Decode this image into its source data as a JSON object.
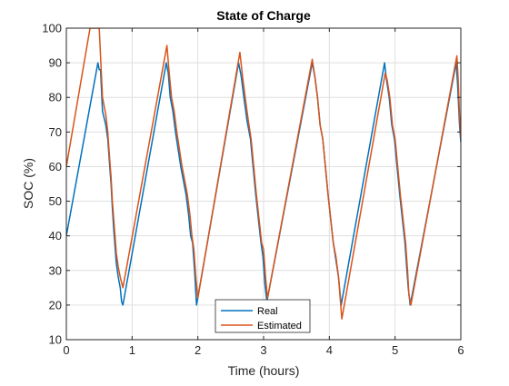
{
  "chart_data": {
    "type": "line",
    "title": "State of Charge",
    "xlabel": "Time (hours)",
    "ylabel": "SOC (%)",
    "xlim": [
      0,
      6
    ],
    "ylim": [
      10,
      100
    ],
    "xticks": [
      0,
      1,
      2,
      3,
      4,
      5,
      6
    ],
    "yticks": [
      10,
      20,
      30,
      40,
      50,
      60,
      70,
      80,
      90,
      100
    ],
    "grid": true,
    "legend_position": "bottom-center",
    "series": [
      {
        "name": "Real",
        "color": "#0072BD",
        "points": [
          [
            0.0,
            40
          ],
          [
            0.48,
            90
          ],
          [
            0.5,
            88
          ],
          [
            0.52,
            88
          ],
          [
            0.55,
            76
          ],
          [
            0.6,
            72
          ],
          [
            0.63,
            68
          ],
          [
            0.66,
            60
          ],
          [
            0.68,
            55
          ],
          [
            0.7,
            48
          ],
          [
            0.72,
            42
          ],
          [
            0.74,
            37
          ],
          [
            0.76,
            32
          ],
          [
            0.79,
            28
          ],
          [
            0.82,
            25
          ],
          [
            0.84,
            21
          ],
          [
            0.86,
            20
          ],
          [
            1.52,
            90
          ],
          [
            1.55,
            87
          ],
          [
            1.58,
            80
          ],
          [
            1.62,
            76
          ],
          [
            1.66,
            70
          ],
          [
            1.7,
            65
          ],
          [
            1.74,
            60
          ],
          [
            1.78,
            56
          ],
          [
            1.82,
            52
          ],
          [
            1.86,
            46
          ],
          [
            1.89,
            40
          ],
          [
            1.92,
            38
          ],
          [
            1.95,
            30
          ],
          [
            1.98,
            20
          ],
          [
            2.62,
            90
          ],
          [
            2.66,
            86
          ],
          [
            2.7,
            80
          ],
          [
            2.75,
            73
          ],
          [
            2.8,
            68
          ],
          [
            2.84,
            60
          ],
          [
            2.88,
            52
          ],
          [
            2.92,
            45
          ],
          [
            2.96,
            38
          ],
          [
            2.99,
            34
          ],
          [
            3.02,
            26
          ],
          [
            3.05,
            21
          ],
          [
            3.74,
            90
          ],
          [
            3.78,
            86
          ],
          [
            3.82,
            80
          ],
          [
            3.86,
            72
          ],
          [
            3.9,
            68
          ],
          [
            3.94,
            60
          ],
          [
            3.98,
            52
          ],
          [
            4.02,
            45
          ],
          [
            4.06,
            38
          ],
          [
            4.1,
            33
          ],
          [
            4.14,
            28
          ],
          [
            4.18,
            20
          ],
          [
            4.84,
            90
          ],
          [
            4.87,
            85
          ],
          [
            4.91,
            80
          ],
          [
            4.95,
            72
          ],
          [
            4.99,
            68
          ],
          [
            5.03,
            60
          ],
          [
            5.07,
            52
          ],
          [
            5.11,
            45
          ],
          [
            5.15,
            38
          ],
          [
            5.18,
            30
          ],
          [
            5.2,
            25
          ],
          [
            5.23,
            20
          ],
          [
            5.93,
            90
          ],
          [
            5.95,
            84
          ],
          [
            5.98,
            72
          ],
          [
            6.0,
            67
          ]
        ]
      },
      {
        "name": "Estimated",
        "color": "#D95319",
        "points": [
          [
            0.0,
            60
          ],
          [
            0.36,
            100
          ],
          [
            0.5,
            100
          ],
          [
            0.52,
            92
          ],
          [
            0.55,
            80
          ],
          [
            0.6,
            75
          ],
          [
            0.63,
            70
          ],
          [
            0.66,
            62
          ],
          [
            0.68,
            57
          ],
          [
            0.7,
            50
          ],
          [
            0.72,
            45
          ],
          [
            0.74,
            40
          ],
          [
            0.76,
            35
          ],
          [
            0.79,
            31
          ],
          [
            0.82,
            28
          ],
          [
            0.86,
            25
          ],
          [
            1.53,
            95
          ],
          [
            1.56,
            88
          ],
          [
            1.6,
            80
          ],
          [
            1.64,
            76
          ],
          [
            1.68,
            70
          ],
          [
            1.72,
            65
          ],
          [
            1.76,
            60
          ],
          [
            1.8,
            56
          ],
          [
            1.84,
            52
          ],
          [
            1.88,
            46
          ],
          [
            1.91,
            40
          ],
          [
            1.94,
            36
          ],
          [
            1.97,
            28
          ],
          [
            2.0,
            22
          ],
          [
            2.64,
            93
          ],
          [
            2.68,
            86
          ],
          [
            2.72,
            80
          ],
          [
            2.77,
            73
          ],
          [
            2.81,
            68
          ],
          [
            2.85,
            60
          ],
          [
            2.89,
            52
          ],
          [
            2.93,
            45
          ],
          [
            2.97,
            38
          ],
          [
            3.0,
            36
          ],
          [
            3.03,
            28
          ],
          [
            3.06,
            22
          ],
          [
            3.74,
            91
          ],
          [
            3.78,
            86
          ],
          [
            3.82,
            80
          ],
          [
            3.86,
            72
          ],
          [
            3.9,
            68
          ],
          [
            3.94,
            60
          ],
          [
            3.98,
            52
          ],
          [
            4.02,
            45
          ],
          [
            4.06,
            38
          ],
          [
            4.1,
            34
          ],
          [
            4.14,
            28
          ],
          [
            4.19,
            16
          ],
          [
            4.85,
            87
          ],
          [
            4.88,
            85
          ],
          [
            4.92,
            80
          ],
          [
            4.96,
            72
          ],
          [
            5.0,
            68
          ],
          [
            5.04,
            60
          ],
          [
            5.08,
            52
          ],
          [
            5.12,
            45
          ],
          [
            5.16,
            38
          ],
          [
            5.19,
            30
          ],
          [
            5.21,
            23
          ],
          [
            5.24,
            20
          ],
          [
            5.94,
            92
          ],
          [
            5.96,
            85
          ],
          [
            5.98,
            75
          ],
          [
            6.0,
            68
          ]
        ]
      }
    ]
  }
}
